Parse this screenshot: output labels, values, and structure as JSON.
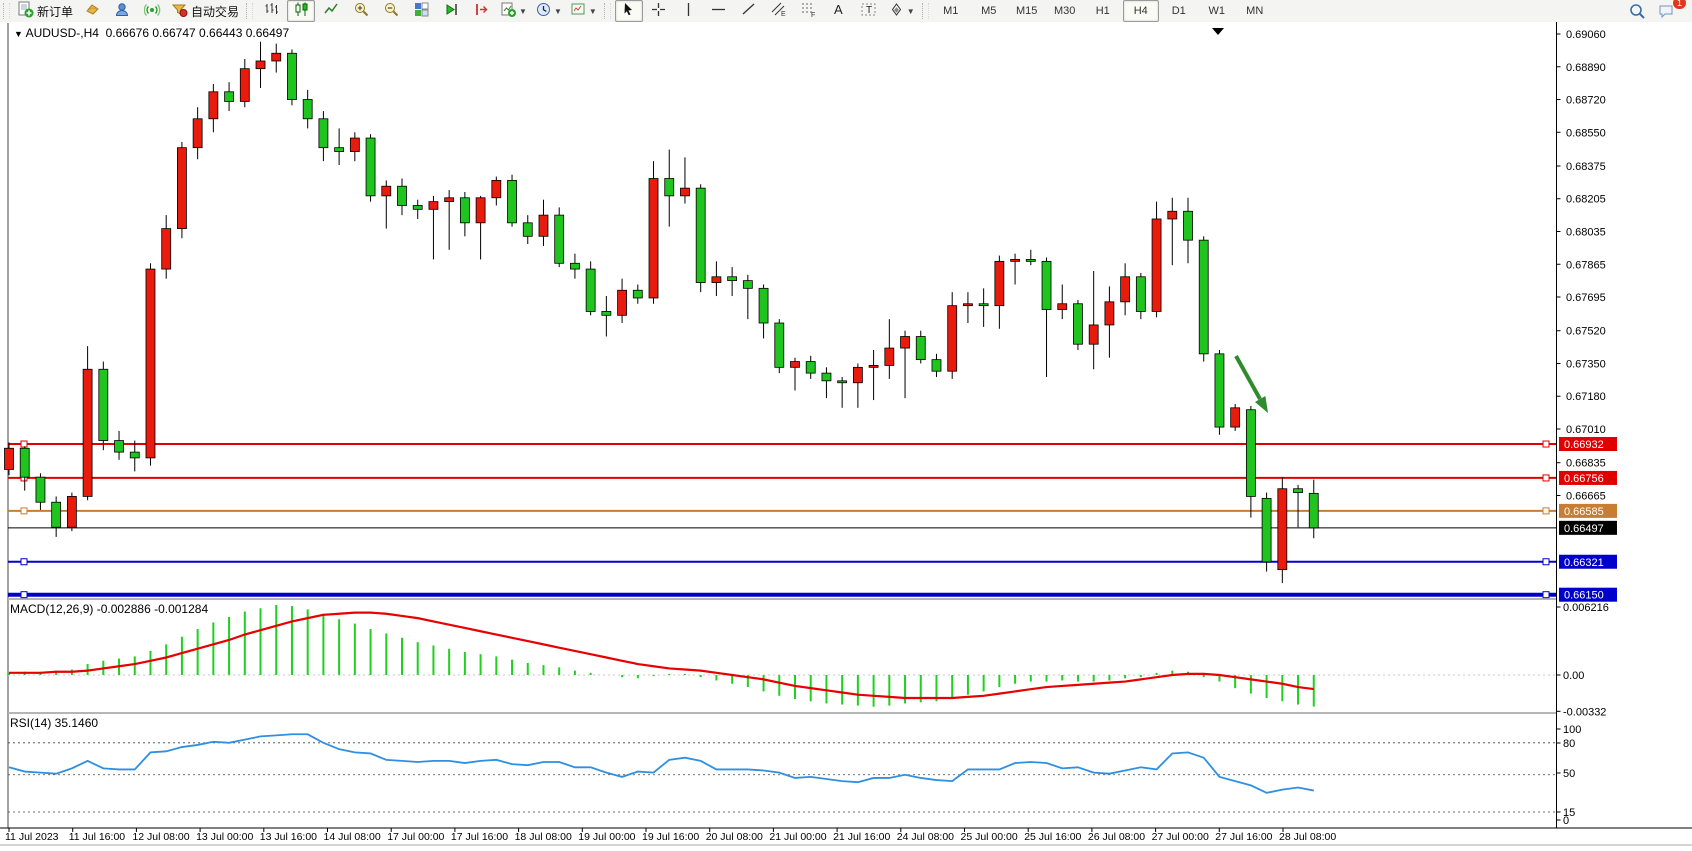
{
  "toolbar": {
    "groups": [
      {
        "items": [
          {
            "name": "new-order-button",
            "icon": "new-order",
            "label": "新订单"
          },
          {
            "name": "charts-button",
            "icon": "gold-box"
          },
          {
            "name": "navigator-button",
            "icon": "blue-person"
          },
          {
            "name": "signals-button",
            "icon": "green-signal"
          },
          {
            "name": "autotrading-button",
            "icon": "autotrade",
            "label": "自动交易"
          }
        ]
      },
      {
        "items": [
          {
            "name": "bar-chart-button",
            "icon": "bars"
          },
          {
            "name": "candlestick-button",
            "icon": "candles",
            "active": true
          },
          {
            "name": "line-chart-button",
            "icon": "linechart"
          },
          {
            "name": "zoom-in-button",
            "icon": "zoom-in"
          },
          {
            "name": "zoom-out-button",
            "icon": "zoom-out"
          },
          {
            "name": "tile-windows-button",
            "icon": "tile"
          },
          {
            "name": "auto-scroll-button",
            "icon": "autoscroll"
          },
          {
            "name": "chart-shift-button",
            "icon": "shift"
          },
          {
            "name": "indicators-button",
            "icon": "indicator",
            "dropdown": true
          },
          {
            "name": "periods-button",
            "icon": "clock",
            "dropdown": true
          },
          {
            "name": "templates-button",
            "icon": "template",
            "dropdown": true
          }
        ]
      },
      {
        "items": [
          {
            "name": "cursor-button",
            "icon": "cursor",
            "active": true
          },
          {
            "name": "crosshair-button",
            "icon": "crosshair"
          },
          {
            "name": "vline-button",
            "icon": "vline"
          },
          {
            "name": "hline-button",
            "icon": "hline"
          },
          {
            "name": "trendline-button",
            "icon": "trendline"
          },
          {
            "name": "channel-button",
            "icon": "channel"
          },
          {
            "name": "fibonacci-button",
            "icon": "fibo"
          },
          {
            "name": "text-button",
            "icon": "textA"
          },
          {
            "name": "label-button",
            "icon": "labelT"
          },
          {
            "name": "shapes-button",
            "icon": "shapes",
            "dropdown": true
          }
        ]
      }
    ],
    "timeframes": [
      "M1",
      "M5",
      "M15",
      "M30",
      "H1",
      "H4",
      "D1",
      "W1",
      "MN"
    ],
    "active_timeframe": "H4",
    "right": {
      "search_icon": "search",
      "chat_icon": "chat",
      "chat_badge": "1"
    }
  },
  "chart": {
    "symbol_title": "AUDUSD-,H4",
    "ohlc_text": "0.66676 0.66747 0.66443 0.66497",
    "macd_label": "MACD(12,26,9) -0.002886 -0.001284",
    "rsi_label": "RSI(14) 35.1460"
  },
  "chart_data": {
    "type": "candlestick",
    "symbol": "AUDUSD-",
    "timeframe": "H4",
    "current_ohlc": {
      "open": 0.66676,
      "high": 0.66747,
      "low": 0.66443,
      "close": 0.66497
    },
    "bull_color": "#e81b0c",
    "bear_color": "#1fc41f",
    "price_axis_labels": [
      0.6906,
      0.6889,
      0.6872,
      0.6855,
      0.68375,
      0.68205,
      0.68035,
      0.67865,
      0.67695,
      0.6752,
      0.6735,
      0.6718,
      0.6701,
      0.66835,
      0.66665
    ],
    "levels": [
      {
        "price": 0.66932,
        "label": "0.66932",
        "color": "#e00000",
        "thickness": 2,
        "kind": "resistance-line"
      },
      {
        "price": 0.66756,
        "label": "0.66756",
        "color": "#e00000",
        "thickness": 2,
        "kind": "resistance-line"
      },
      {
        "price": 0.66585,
        "label": "0.66585",
        "color": "#c87d32",
        "thickness": 2,
        "kind": "support-line"
      },
      {
        "price": 0.66497,
        "label": "0.66497",
        "color": "#000000",
        "thickness": 1,
        "kind": "current-price-line"
      },
      {
        "price": 0.66321,
        "label": "0.66321",
        "color": "#0000cd",
        "thickness": 2,
        "kind": "support-line"
      },
      {
        "price": 0.6615,
        "label": "0.66150",
        "color": "#0000cd",
        "thickness": 4,
        "kind": "support-line"
      }
    ],
    "time_axis_labels": [
      "11 Jul 2023",
      "11 Jul 16:00",
      "12 Jul 08:00",
      "13 Jul 00:00",
      "13 Jul 16:00",
      "14 Jul 08:00",
      "17 Jul 00:00",
      "17 Jul 16:00",
      "18 Jul 08:00",
      "19 Jul 00:00",
      "19 Jul 16:00",
      "20 Jul 08:00",
      "21 Jul 00:00",
      "21 Jul 16:00",
      "24 Jul 08:00",
      "25 Jul 00:00",
      "25 Jul 16:00",
      "26 Jul 08:00",
      "27 Jul 00:00",
      "27 Jul 16:00",
      "28 Jul 08:00"
    ],
    "candles": [
      [
        0.668,
        0.6694,
        0.6677,
        0.6691
      ],
      [
        0.6691,
        0.6692,
        0.6669,
        0.6676
      ],
      [
        0.6676,
        0.6678,
        0.6659,
        0.6663
      ],
      [
        0.6663,
        0.6666,
        0.6645,
        0.665
      ],
      [
        0.665,
        0.6668,
        0.6648,
        0.6666
      ],
      [
        0.6666,
        0.6744,
        0.6664,
        0.6732
      ],
      [
        0.6732,
        0.6736,
        0.669,
        0.6695
      ],
      [
        0.6695,
        0.67,
        0.6685,
        0.6689
      ],
      [
        0.6689,
        0.6695,
        0.6679,
        0.6686
      ],
      [
        0.6686,
        0.6787,
        0.6682,
        0.6784
      ],
      [
        0.6784,
        0.6812,
        0.6779,
        0.6805
      ],
      [
        0.6805,
        0.685,
        0.68,
        0.6847
      ],
      [
        0.6847,
        0.6868,
        0.6841,
        0.6862
      ],
      [
        0.6862,
        0.688,
        0.6855,
        0.6876
      ],
      [
        0.6876,
        0.6881,
        0.6866,
        0.6871
      ],
      [
        0.6871,
        0.6893,
        0.6868,
        0.6888
      ],
      [
        0.6888,
        0.6902,
        0.6878,
        0.6892
      ],
      [
        0.6892,
        0.6901,
        0.6886,
        0.6896
      ],
      [
        0.6896,
        0.6898,
        0.6869,
        0.6872
      ],
      [
        0.6872,
        0.6877,
        0.6857,
        0.6862
      ],
      [
        0.6862,
        0.6866,
        0.684,
        0.6847
      ],
      [
        0.6847,
        0.6857,
        0.6838,
        0.6845
      ],
      [
        0.6845,
        0.6855,
        0.684,
        0.6852
      ],
      [
        0.6852,
        0.6854,
        0.6819,
        0.6822
      ],
      [
        0.6822,
        0.683,
        0.6805,
        0.6827
      ],
      [
        0.6827,
        0.6831,
        0.6812,
        0.6817
      ],
      [
        0.6817,
        0.682,
        0.681,
        0.6815
      ],
      [
        0.6815,
        0.6822,
        0.6789,
        0.6819
      ],
      [
        0.6819,
        0.6825,
        0.6794,
        0.6821
      ],
      [
        0.6821,
        0.6824,
        0.6801,
        0.6808
      ],
      [
        0.6808,
        0.6822,
        0.6789,
        0.6821
      ],
      [
        0.6821,
        0.6832,
        0.6817,
        0.683
      ],
      [
        0.683,
        0.6833,
        0.6806,
        0.6808
      ],
      [
        0.6808,
        0.6812,
        0.6797,
        0.6801
      ],
      [
        0.6801,
        0.682,
        0.6796,
        0.6812
      ],
      [
        0.6812,
        0.6816,
        0.6785,
        0.6787
      ],
      [
        0.6787,
        0.6792,
        0.6779,
        0.6784
      ],
      [
        0.6784,
        0.6788,
        0.676,
        0.6762
      ],
      [
        0.6762,
        0.677,
        0.6749,
        0.676
      ],
      [
        0.676,
        0.6779,
        0.6756,
        0.6773
      ],
      [
        0.6773,
        0.6776,
        0.6766,
        0.6769
      ],
      [
        0.6769,
        0.684,
        0.6766,
        0.6831
      ],
      [
        0.6831,
        0.6846,
        0.6806,
        0.6822
      ],
      [
        0.6822,
        0.6842,
        0.6818,
        0.6826
      ],
      [
        0.6826,
        0.6828,
        0.6772,
        0.6777
      ],
      [
        0.6777,
        0.6788,
        0.677,
        0.678
      ],
      [
        0.678,
        0.6785,
        0.677,
        0.6778
      ],
      [
        0.6778,
        0.6781,
        0.6758,
        0.6774
      ],
      [
        0.6774,
        0.6776,
        0.6748,
        0.6756
      ],
      [
        0.6756,
        0.6758,
        0.673,
        0.6733
      ],
      [
        0.6733,
        0.6738,
        0.6721,
        0.6736
      ],
      [
        0.6736,
        0.6739,
        0.6727,
        0.673
      ],
      [
        0.673,
        0.6733,
        0.6717,
        0.6726
      ],
      [
        0.6726,
        0.6728,
        0.6712,
        0.6725
      ],
      [
        0.6725,
        0.6735,
        0.6712,
        0.6733
      ],
      [
        0.6733,
        0.6742,
        0.6716,
        0.6734
      ],
      [
        0.6734,
        0.6758,
        0.6727,
        0.6743
      ],
      [
        0.6743,
        0.6752,
        0.6717,
        0.6749
      ],
      [
        0.6749,
        0.6752,
        0.6735,
        0.6737
      ],
      [
        0.6737,
        0.674,
        0.6728,
        0.6731
      ],
      [
        0.6731,
        0.6772,
        0.6727,
        0.6765
      ],
      [
        0.6765,
        0.6772,
        0.6756,
        0.6766
      ],
      [
        0.6766,
        0.6774,
        0.6754,
        0.6765
      ],
      [
        0.6765,
        0.6791,
        0.6753,
        0.6788
      ],
      [
        0.6788,
        0.6792,
        0.6776,
        0.6789
      ],
      [
        0.6789,
        0.6794,
        0.6786,
        0.6788
      ],
      [
        0.6788,
        0.679,
        0.6728,
        0.6763
      ],
      [
        0.6763,
        0.6776,
        0.6758,
        0.6766
      ],
      [
        0.6766,
        0.6768,
        0.6742,
        0.6745
      ],
      [
        0.6745,
        0.6783,
        0.6732,
        0.6755
      ],
      [
        0.6755,
        0.6775,
        0.6738,
        0.6767
      ],
      [
        0.6767,
        0.6787,
        0.676,
        0.678
      ],
      [
        0.678,
        0.6782,
        0.6758,
        0.6762
      ],
      [
        0.6762,
        0.6819,
        0.6759,
        0.681
      ],
      [
        0.681,
        0.6821,
        0.6786,
        0.6814
      ],
      [
        0.6814,
        0.6821,
        0.6787,
        0.6799
      ],
      [
        0.6799,
        0.6801,
        0.6736,
        0.674
      ],
      [
        0.674,
        0.6742,
        0.6698,
        0.6702
      ],
      [
        0.6702,
        0.6714,
        0.67,
        0.6712
      ],
      [
        0.6711,
        0.6713,
        0.6655,
        0.6666
      ],
      [
        0.6665,
        0.6668,
        0.6627,
        0.6632
      ],
      [
        0.6628,
        0.6676,
        0.6621,
        0.667
      ],
      [
        0.667,
        0.6672,
        0.665,
        0.6668
      ],
      [
        0.66676,
        0.66747,
        0.66443,
        0.66497
      ]
    ],
    "macd": {
      "label": "MACD(12,26,9)",
      "values_text": "-0.002886 -0.001284",
      "axis_labels": [
        "0.006216",
        "0.00",
        "-0.00332"
      ],
      "hist_color": "#1fd11f",
      "signal_color": "#e80000",
      "histogram": [
        0.0002,
        0.0003,
        0.0003,
        0.0004,
        0.0005,
        0.001,
        0.0013,
        0.0015,
        0.0017,
        0.0022,
        0.0028,
        0.0035,
        0.0042,
        0.0048,
        0.0053,
        0.0058,
        0.0061,
        0.0064,
        0.0063,
        0.006,
        0.0056,
        0.0051,
        0.0047,
        0.0042,
        0.0038,
        0.0034,
        0.003,
        0.0027,
        0.0024,
        0.0021,
        0.0019,
        0.0017,
        0.0014,
        0.0011,
        0.0009,
        0.0007,
        0.0004,
        0.0002,
        0.0,
        -0.0002,
        -0.0003,
        -0.0001,
        0.0001,
        0.0001,
        -0.0002,
        -0.0005,
        -0.0008,
        -0.0011,
        -0.0015,
        -0.0019,
        -0.0022,
        -0.0024,
        -0.0026,
        -0.0027,
        -0.0028,
        -0.0029,
        -0.0028,
        -0.0026,
        -0.0025,
        -0.0024,
        -0.0021,
        -0.0018,
        -0.0015,
        -0.0011,
        -0.0008,
        -0.0006,
        -0.0006,
        -0.0005,
        -0.0006,
        -0.0006,
        -0.0005,
        -0.0003,
        -0.0002,
        0.0002,
        0.0004,
        0.0003,
        -0.0002,
        -0.0006,
        -0.0012,
        -0.0017,
        -0.0021,
        -0.0024,
        -0.0027,
        -0.002886
      ],
      "signal": [
        0.0002,
        0.0002,
        0.0002,
        0.0003,
        0.0003,
        0.0004,
        0.0006,
        0.0008,
        0.001,
        0.0013,
        0.0016,
        0.002,
        0.0024,
        0.0028,
        0.0032,
        0.0037,
        0.0041,
        0.0045,
        0.0049,
        0.0052,
        0.0055,
        0.0056,
        0.0057,
        0.0057,
        0.0056,
        0.0054,
        0.0052,
        0.0049,
        0.0046,
        0.0043,
        0.004,
        0.0037,
        0.0034,
        0.0031,
        0.0028,
        0.0025,
        0.0022,
        0.0019,
        0.0016,
        0.0013,
        0.001,
        0.0008,
        0.0006,
        0.0005,
        0.0004,
        0.0002,
        0.0,
        -0.0002,
        -0.0004,
        -0.0007,
        -0.001,
        -0.0012,
        -0.0014,
        -0.0016,
        -0.0018,
        -0.0019,
        -0.002,
        -0.0021,
        -0.0021,
        -0.0021,
        -0.0021,
        -0.002,
        -0.0019,
        -0.0017,
        -0.0015,
        -0.0013,
        -0.0011,
        -0.001,
        -0.0009,
        -0.0008,
        -0.0007,
        -0.0006,
        -0.0004,
        -0.0002,
        0.0,
        0.0001,
        0.0001,
        0.0,
        -0.0002,
        -0.0004,
        -0.0006,
        -0.0008,
        -0.0011,
        -0.001284
      ]
    },
    "rsi": {
      "label": "RSI(14)",
      "value_text": "35.1460",
      "axis_labels": [
        "100",
        "80",
        "50",
        "15",
        "0"
      ],
      "guide_levels": [
        80,
        50,
        15
      ],
      "line_color": "#2f8fe0",
      "values": [
        57,
        53,
        52,
        51,
        56,
        63,
        56,
        55,
        55,
        71,
        72,
        76,
        78,
        81,
        80,
        83,
        86,
        87,
        88,
        88,
        80,
        74,
        71,
        70,
        64,
        63,
        62,
        63,
        63,
        61,
        63,
        64,
        60,
        59,
        62,
        62,
        57,
        57,
        52,
        48,
        53,
        52,
        64,
        66,
        63,
        55,
        55,
        55,
        54,
        52,
        47,
        48,
        46,
        44,
        43,
        47,
        47,
        50,
        47,
        45,
        44,
        55,
        55,
        55,
        61,
        62,
        61,
        56,
        57,
        52,
        51,
        54,
        57,
        55,
        70,
        71,
        66,
        48,
        44,
        40,
        33,
        36,
        38,
        35.146
      ]
    },
    "annotations": {
      "trend_arrow_color": "#2e8b2e",
      "bar_shift_marker": "down-triangle"
    }
  }
}
